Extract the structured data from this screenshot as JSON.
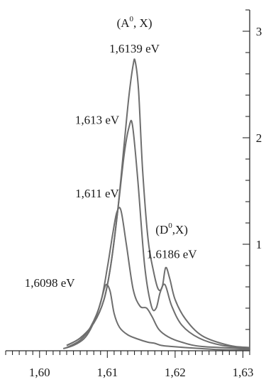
{
  "chart_data": {
    "type": "line",
    "title": "",
    "xlabel": "",
    "ylabel": "",
    "xlim": [
      1.595,
      1.631
    ],
    "ylim": [
      0,
      3.2
    ],
    "x_ticks": [
      {
        "value": 1.6,
        "label": "1,60"
      },
      {
        "value": 1.61,
        "label": "1,61"
      },
      {
        "value": 1.62,
        "label": "1,62"
      },
      {
        "value": 1.63,
        "label": "1,63"
      }
    ],
    "y_ticks": [
      {
        "value": 1,
        "label": "1"
      },
      {
        "value": 2,
        "label": "2"
      },
      {
        "value": 3,
        "label": "3"
      }
    ],
    "line_color": "#6e6e6e",
    "axis_color": "#2a2a2a",
    "series": [
      {
        "x": [
          1.6035,
          1.605,
          1.6065,
          1.6075,
          1.6085,
          1.6092,
          1.6098,
          1.6104,
          1.611,
          1.6118,
          1.613,
          1.6145,
          1.616,
          1.617,
          1.618,
          1.6195,
          1.6215,
          1.624,
          1.627,
          1.631
        ],
        "y": [
          0.02,
          0.05,
          0.11,
          0.2,
          0.35,
          0.5,
          0.62,
          0.56,
          0.35,
          0.22,
          0.15,
          0.11,
          0.08,
          0.07,
          0.05,
          0.04,
          0.03,
          0.02,
          0.01,
          0.01
        ]
      },
      {
        "x": [
          1.604,
          1.606,
          1.6075,
          1.609,
          1.61,
          1.6108,
          1.6114,
          1.612,
          1.6128,
          1.6138,
          1.6148,
          1.6158,
          1.6166,
          1.6176,
          1.619,
          1.621,
          1.624,
          1.631
        ],
        "y": [
          0.03,
          0.1,
          0.22,
          0.45,
          0.78,
          1.1,
          1.3,
          1.32,
          1.0,
          0.58,
          0.42,
          0.4,
          0.32,
          0.2,
          0.13,
          0.08,
          0.04,
          0.02
        ]
      },
      {
        "x": [
          1.604,
          1.606,
          1.608,
          1.6095,
          1.6105,
          1.6115,
          1.6125,
          1.6132,
          1.6137,
          1.6145,
          1.6155,
          1.6165,
          1.6172,
          1.6178,
          1.6185,
          1.6195,
          1.621,
          1.6235,
          1.627,
          1.631
        ],
        "y": [
          0.05,
          0.12,
          0.26,
          0.48,
          0.8,
          1.3,
          1.85,
          2.1,
          2.12,
          1.6,
          0.8,
          0.42,
          0.4,
          0.55,
          0.62,
          0.42,
          0.24,
          0.12,
          0.05,
          0.03
        ]
      },
      {
        "x": [
          1.604,
          1.606,
          1.608,
          1.6095,
          1.6105,
          1.6115,
          1.6125,
          1.6132,
          1.6138,
          1.6141,
          1.6146,
          1.6152,
          1.616,
          1.6168,
          1.6175,
          1.6181,
          1.6186,
          1.6192,
          1.62,
          1.6215,
          1.624,
          1.628,
          1.631
        ],
        "y": [
          0.05,
          0.12,
          0.26,
          0.48,
          0.8,
          1.3,
          1.95,
          2.4,
          2.68,
          2.72,
          2.45,
          1.7,
          1.05,
          0.75,
          0.58,
          0.6,
          0.78,
          0.68,
          0.48,
          0.3,
          0.14,
          0.05,
          0.03
        ]
      }
    ],
    "annotations": [
      {
        "text": "(A",
        "sup": "0",
        "text_after": ", X)",
        "x": 1.614,
        "y": 3.04,
        "align": "center"
      },
      {
        "text": "1,6139 eV",
        "x": 1.614,
        "y": 2.8,
        "align": "center"
      },
      {
        "text": "1,613 eV",
        "x": 1.6085,
        "y": 2.13,
        "align": "center"
      },
      {
        "text": "1,611 eV",
        "x": 1.6085,
        "y": 1.44,
        "align": "center"
      },
      {
        "text": "(D",
        "sup": "0",
        "text_after": ",X)",
        "x": 1.6195,
        "y": 1.1,
        "align": "center"
      },
      {
        "text": "1.6186 eV",
        "x": 1.6195,
        "y": 0.87,
        "align": "center"
      },
      {
        "text": "1,6098 eV",
        "x": 1.6015,
        "y": 0.6,
        "align": "center"
      }
    ]
  }
}
